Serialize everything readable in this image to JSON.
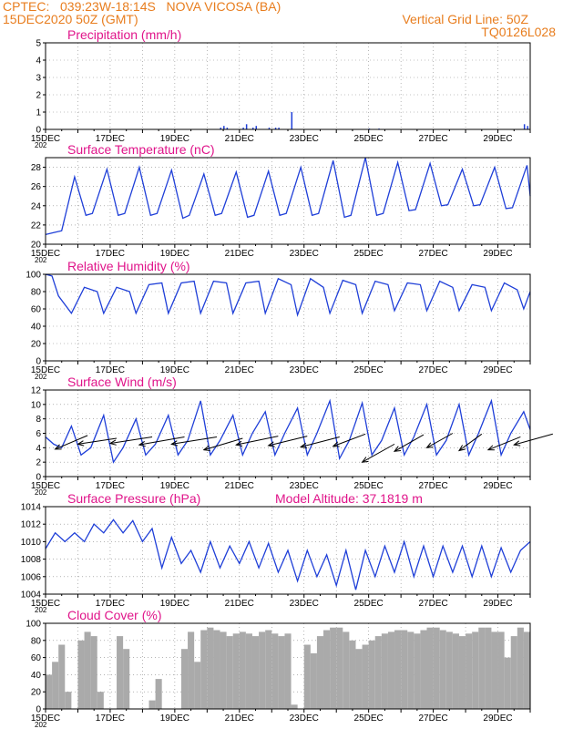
{
  "header": {
    "line1": "CPTEC:   039:23W-18:14S   NOVA VICOSA (BA)",
    "line2": "15DEC2020 50Z (GMT)",
    "right1": "Vertical Grid Line: 50Z",
    "right2": "TQ0126L028"
  },
  "colors": {
    "header": "#e87d1e",
    "title": "#e0148a",
    "line": "#1f3fd8",
    "cloud": "#aaaaaa"
  },
  "chart_data": [
    {
      "type": "bar",
      "title": "Precipitation (mm/h)",
      "xlabel": "",
      "ylabel": "",
      "ylim": [
        0,
        5
      ],
      "yticks": [
        0,
        1,
        2,
        3,
        4,
        5
      ],
      "xticks": [
        "15DEC",
        "17DEC",
        "19DEC",
        "21DEC",
        "23DEC",
        "25DEC",
        "27DEC",
        "29DEC"
      ],
      "x_year_label": "202",
      "x": [
        5.4,
        5.5,
        5.6,
        6.1,
        6.2,
        6.4,
        6.5,
        6.9,
        7.1,
        7.2,
        7.6,
        10.0,
        10.3,
        14.8,
        14.9
      ],
      "values": [
        0.1,
        0.2,
        0.1,
        0.1,
        0.3,
        0.1,
        0.2,
        0.1,
        0.1,
        0.1,
        1.0,
        0.05,
        0.05,
        0.3,
        0.2
      ],
      "grid": true
    },
    {
      "type": "line",
      "title": "Surface Temperature (nC)",
      "ylim": [
        20,
        29
      ],
      "yticks": [
        20,
        22,
        24,
        26,
        28
      ],
      "xticks": [
        "15DEC",
        "17DEC",
        "19DEC",
        "21DEC",
        "23DEC",
        "25DEC",
        "27DEC",
        "29DEC"
      ],
      "x_year_label": "202",
      "x": [
        0,
        0.25,
        0.5,
        0.9,
        1.25,
        1.45,
        1.9,
        2.25,
        2.45,
        2.9,
        3.25,
        3.45,
        3.9,
        4.25,
        4.45,
        4.9,
        5.25,
        5.45,
        5.9,
        6.25,
        6.45,
        6.9,
        7.25,
        7.45,
        7.9,
        8.25,
        8.45,
        8.9,
        9.25,
        9.45,
        9.9,
        10.25,
        10.45,
        10.9,
        11.25,
        11.45,
        11.9,
        12.25,
        12.45,
        12.9,
        13.25,
        13.45,
        13.9,
        14.25,
        14.45,
        14.9,
        15.0
      ],
      "series": [
        {
          "values": [
            21.0,
            21.2,
            21.4,
            27.0,
            23.0,
            23.2,
            27.8,
            23.0,
            23.2,
            28.0,
            23.0,
            23.2,
            27.7,
            22.7,
            23.0,
            27.3,
            23.0,
            23.2,
            27.5,
            22.8,
            23.0,
            27.6,
            23.0,
            23.2,
            28.0,
            23.0,
            23.2,
            28.7,
            22.8,
            23.0,
            29.0,
            23.0,
            23.2,
            28.5,
            23.5,
            23.6,
            28.4,
            24.0,
            24.1,
            27.8,
            24.0,
            24.1,
            28.0,
            23.7,
            23.8,
            28.2,
            25.0
          ]
        }
      ],
      "grid": true
    },
    {
      "type": "line",
      "title": "Relative Humidity (%)",
      "ylim": [
        0,
        100
      ],
      "yticks": [
        0,
        20,
        40,
        60,
        80,
        100
      ],
      "xticks": [
        "15DEC",
        "17DEC",
        "19DEC",
        "21DEC",
        "23DEC",
        "25DEC",
        "27DEC",
        "29DEC"
      ],
      "x_year_label": "202",
      "x": [
        0,
        0.2,
        0.4,
        0.8,
        1.2,
        1.6,
        1.8,
        2.2,
        2.6,
        2.8,
        3.2,
        3.6,
        3.8,
        4.2,
        4.6,
        4.8,
        5.2,
        5.6,
        5.8,
        6.2,
        6.6,
        6.8,
        7.2,
        7.6,
        7.8,
        8.2,
        8.6,
        8.8,
        9.2,
        9.6,
        9.8,
        10.2,
        10.6,
        10.8,
        11.2,
        11.6,
        11.8,
        12.2,
        12.6,
        12.8,
        13.2,
        13.6,
        13.8,
        14.2,
        14.6,
        14.8,
        15.0
      ],
      "series": [
        {
          "values": [
            100,
            98,
            75,
            55,
            85,
            80,
            55,
            85,
            80,
            55,
            88,
            90,
            55,
            90,
            92,
            55,
            92,
            90,
            55,
            90,
            92,
            55,
            95,
            88,
            53,
            95,
            85,
            55,
            93,
            88,
            55,
            92,
            88,
            58,
            90,
            88,
            58,
            92,
            85,
            58,
            88,
            85,
            58,
            90,
            82,
            60,
            80
          ]
        }
      ],
      "grid": true
    },
    {
      "type": "line",
      "title": "Surface Wind (m/s)",
      "ylim": [
        0,
        12
      ],
      "yticks": [
        0,
        2,
        4,
        6,
        8,
        10,
        12
      ],
      "xticks": [
        "15DEC",
        "17DEC",
        "19DEC",
        "21DEC",
        "23DEC",
        "25DEC",
        "27DEC",
        "29DEC"
      ],
      "x_year_label": "202",
      "x": [
        0,
        0.25,
        0.5,
        0.8,
        1.1,
        1.4,
        1.8,
        2.1,
        2.4,
        2.8,
        3.1,
        3.4,
        3.8,
        4.1,
        4.4,
        4.8,
        5.1,
        5.4,
        5.8,
        6.1,
        6.4,
        6.8,
        7.1,
        7.4,
        7.8,
        8.1,
        8.4,
        8.8,
        9.1,
        9.4,
        9.8,
        10.1,
        10.4,
        10.8,
        11.1,
        11.4,
        11.8,
        12.1,
        12.4,
        12.8,
        13.1,
        13.4,
        13.8,
        14.1,
        14.4,
        14.8,
        15.0
      ],
      "series": [
        {
          "values": [
            5.5,
            4.5,
            4.0,
            7.0,
            3.0,
            4.0,
            8.5,
            2.0,
            4.0,
            8.0,
            3.0,
            4.5,
            8.5,
            3.0,
            5.0,
            10.5,
            3.0,
            5.0,
            8.5,
            3.0,
            6.0,
            9.0,
            3.0,
            6.0,
            9.5,
            3.0,
            6.0,
            10.5,
            2.5,
            5.0,
            10.2,
            3.0,
            5.0,
            9.5,
            3.0,
            5.5,
            10.0,
            3.0,
            5.0,
            10.0,
            3.0,
            6.0,
            10.5,
            3.0,
            6.0,
            9.0,
            6.5
          ]
        }
      ],
      "barbs": [
        {
          "x": 0.3,
          "y": 3.8,
          "dx": 1.0,
          "dy": 1.9
        },
        {
          "x": 1.0,
          "y": 4.5,
          "dx": 1.2,
          "dy": 0.8
        },
        {
          "x": 2.0,
          "y": 4.6,
          "dx": 1.3,
          "dy": 0.9
        },
        {
          "x": 2.9,
          "y": 4.4,
          "dx": 1.4,
          "dy": 1.1
        },
        {
          "x": 3.9,
          "y": 4.5,
          "dx": 1.4,
          "dy": 1.0
        },
        {
          "x": 4.9,
          "y": 3.7,
          "dx": 1.2,
          "dy": 1.6
        },
        {
          "x": 5.9,
          "y": 4.4,
          "dx": 1.3,
          "dy": 1.2
        },
        {
          "x": 6.9,
          "y": 4.3,
          "dx": 1.2,
          "dy": 1.3
        },
        {
          "x": 7.9,
          "y": 4.1,
          "dx": 1.2,
          "dy": 1.4
        },
        {
          "x": 8.9,
          "y": 4.2,
          "dx": 1.0,
          "dy": 1.7
        },
        {
          "x": 9.8,
          "y": 2.0,
          "dx": 1.0,
          "dy": 2.5
        },
        {
          "x": 10.8,
          "y": 3.5,
          "dx": 0.9,
          "dy": 2.3
        },
        {
          "x": 11.8,
          "y": 4.0,
          "dx": 0.8,
          "dy": 2.0
        },
        {
          "x": 12.8,
          "y": 3.6,
          "dx": 0.7,
          "dy": 2.3
        },
        {
          "x": 13.7,
          "y": 3.7,
          "dx": 1.0,
          "dy": 1.8
        },
        {
          "x": 14.5,
          "y": 4.4,
          "dx": 1.2,
          "dy": 1.5
        }
      ],
      "grid": true
    },
    {
      "type": "line",
      "title": "Surface Pressure (hPa)",
      "annotation": "Model Altitude: 37.1819 m",
      "ylim": [
        1004,
        1014
      ],
      "yticks": [
        1004,
        1006,
        1008,
        1010,
        1012,
        1014
      ],
      "xticks": [
        "15DEC",
        "17DEC",
        "19DEC",
        "21DEC",
        "23DEC",
        "25DEC",
        "27DEC",
        "29DEC"
      ],
      "x_year_label": "202",
      "x": [
        0,
        0.3,
        0.6,
        0.9,
        1.2,
        1.5,
        1.8,
        2.1,
        2.4,
        2.7,
        3.0,
        3.3,
        3.6,
        3.9,
        4.2,
        4.5,
        4.8,
        5.1,
        5.4,
        5.7,
        6.0,
        6.3,
        6.6,
        6.9,
        7.2,
        7.5,
        7.8,
        8.1,
        8.4,
        8.7,
        9.0,
        9.3,
        9.6,
        9.9,
        10.2,
        10.5,
        10.8,
        11.1,
        11.4,
        11.7,
        12.0,
        12.3,
        12.6,
        12.9,
        13.2,
        13.5,
        13.8,
        14.1,
        14.4,
        14.7,
        15.0
      ],
      "series": [
        {
          "values": [
            1009.2,
            1011.0,
            1010.0,
            1011.0,
            1010.0,
            1012.0,
            1011.0,
            1012.5,
            1011.0,
            1012.4,
            1010.0,
            1011.5,
            1007.0,
            1010.5,
            1007.5,
            1009.0,
            1006.5,
            1010.0,
            1007.0,
            1009.5,
            1007.5,
            1010.0,
            1007.0,
            1009.8,
            1006.5,
            1009.0,
            1005.5,
            1009.0,
            1006.0,
            1008.5,
            1005.0,
            1009.0,
            1004.5,
            1009.0,
            1006.0,
            1009.5,
            1006.5,
            1010.0,
            1006.0,
            1009.5,
            1006.0,
            1009.5,
            1006.5,
            1009.5,
            1006.0,
            1009.5,
            1006.0,
            1009.3,
            1006.5,
            1009.0,
            1010.0
          ]
        }
      ],
      "grid": true
    },
    {
      "type": "area",
      "title": "Cloud Cover (%)",
      "ylim": [
        0,
        100
      ],
      "yticks": [
        0,
        20,
        40,
        60,
        80,
        100
      ],
      "xticks": [
        "15DEC",
        "17DEC",
        "19DEC",
        "21DEC",
        "23DEC",
        "25DEC",
        "27DEC",
        "29DEC"
      ],
      "x_year_label": "202",
      "x": [
        0,
        0.2,
        0.4,
        0.6,
        0.8,
        1.0,
        1.2,
        1.4,
        1.6,
        1.8,
        2.0,
        2.2,
        2.4,
        2.6,
        2.8,
        3.0,
        3.2,
        3.4,
        3.6,
        3.8,
        4.0,
        4.2,
        4.4,
        4.6,
        4.8,
        5.0,
        5.2,
        5.4,
        5.6,
        5.8,
        6.0,
        6.2,
        6.4,
        6.6,
        6.8,
        7.0,
        7.2,
        7.4,
        7.6,
        7.8,
        8.0,
        8.2,
        8.4,
        8.6,
        8.8,
        9.0,
        9.2,
        9.4,
        9.6,
        9.8,
        10.0,
        10.2,
        10.4,
        10.6,
        10.8,
        11.0,
        11.2,
        11.4,
        11.6,
        11.8,
        12.0,
        12.2,
        12.4,
        12.6,
        12.8,
        13.0,
        13.2,
        13.4,
        13.6,
        13.8,
        14.0,
        14.2,
        14.4,
        14.6,
        14.8,
        15.0
      ],
      "series": [
        {
          "values": [
            40,
            55,
            75,
            20,
            0,
            80,
            90,
            85,
            20,
            0,
            0,
            85,
            70,
            0,
            0,
            0,
            10,
            35,
            0,
            0,
            0,
            70,
            90,
            55,
            92,
            95,
            92,
            90,
            85,
            88,
            90,
            88,
            85,
            90,
            92,
            88,
            85,
            88,
            5,
            0,
            75,
            65,
            85,
            92,
            95,
            95,
            90,
            80,
            70,
            75,
            80,
            85,
            88,
            90,
            92,
            92,
            90,
            88,
            92,
            95,
            95,
            92,
            90,
            88,
            85,
            88,
            90,
            95,
            95,
            90,
            90,
            60,
            85,
            95,
            90,
            88
          ]
        }
      ],
      "grid": true
    }
  ]
}
